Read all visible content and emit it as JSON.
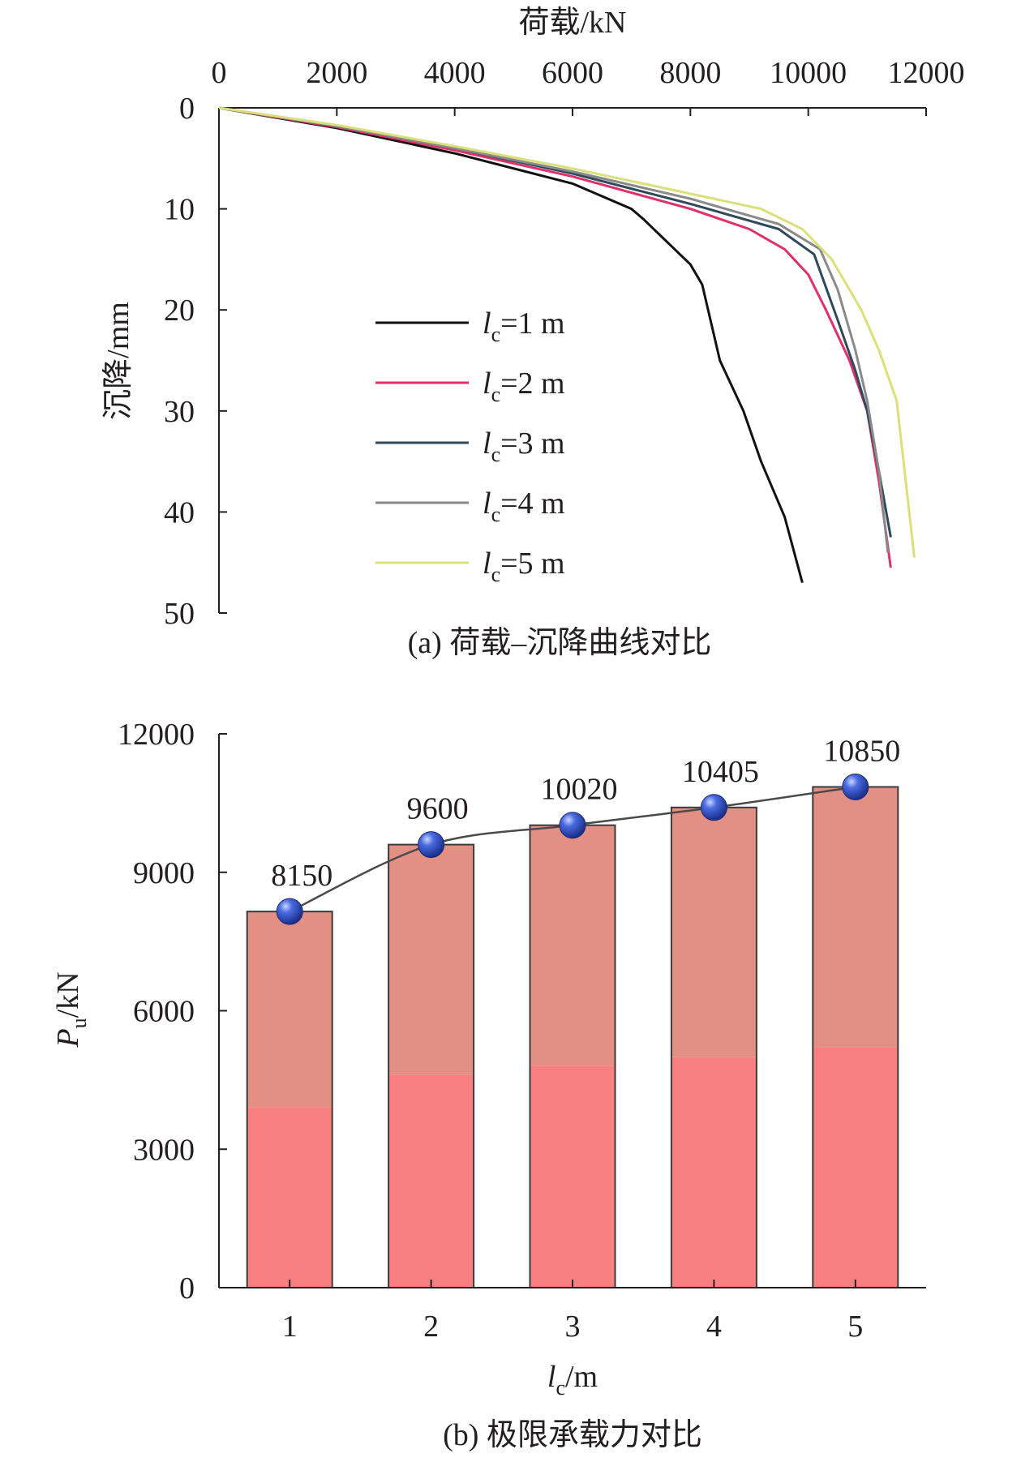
{
  "chart_data": [
    {
      "type": "line",
      "caption": "(a) 荷载–沉降曲线对比",
      "xlabel": "荷载/kN",
      "ylabel": "沉降/mm",
      "x_axis_position": "top",
      "y_axis_inverted": true,
      "xlim": [
        0,
        12000
      ],
      "ylim": [
        0,
        50
      ],
      "x_ticks": [
        "0",
        "2000",
        "4000",
        "6000",
        "8000",
        "10000",
        "12000"
      ],
      "y_ticks": [
        "0",
        "10",
        "20",
        "30",
        "40",
        "50"
      ],
      "grid": false,
      "legend_position": "center-left",
      "series": [
        {
          "name": "lc=1 m",
          "name_main": "l",
          "name_sub": "c",
          "name_rest": "=1 m",
          "color": "#111111",
          "x": [
            0,
            2000,
            4000,
            6000,
            7000,
            7200,
            8000,
            8200,
            8500,
            8900,
            9200,
            9600,
            9900
          ],
          "y": [
            0,
            2.0,
            4.5,
            7.5,
            10.0,
            11.0,
            15.5,
            17.5,
            25.0,
            30.0,
            35.0,
            40.5,
            47.0
          ]
        },
        {
          "name": "lc=2 m",
          "name_main": "l",
          "name_sub": "c",
          "name_rest": "=2 m",
          "color": "#e0306a",
          "x": [
            0,
            2000,
            4000,
            6000,
            8000,
            9000,
            9600,
            10000,
            10300,
            10700,
            11000,
            11200,
            11400
          ],
          "y": [
            0,
            1.9,
            4.2,
            6.8,
            10.0,
            12.0,
            14.0,
            16.5,
            20.0,
            25.0,
            30.0,
            37.0,
            45.5
          ]
        },
        {
          "name": "lc=3 m",
          "name_main": "l",
          "name_sub": "c",
          "name_rest": "=3 m",
          "color": "#2e4a5c",
          "x": [
            0,
            2000,
            4000,
            6000,
            8000,
            9500,
            10100,
            10500,
            10800,
            11000,
            11200,
            11400
          ],
          "y": [
            0,
            1.8,
            4.0,
            6.5,
            9.5,
            12.0,
            14.5,
            21.0,
            26.0,
            30.0,
            36.0,
            42.5
          ]
        },
        {
          "name": "lc=4 m",
          "name_main": "l",
          "name_sub": "c",
          "name_rest": "=4 m",
          "color": "#8a8a8a",
          "x": [
            0,
            2000,
            4000,
            6000,
            8000,
            9500,
            10200,
            10500,
            10800,
            11000,
            11200,
            11350
          ],
          "y": [
            0,
            1.8,
            4.0,
            6.3,
            9.0,
            11.5,
            14.0,
            18.0,
            24.0,
            29.0,
            36.0,
            44.0
          ]
        },
        {
          "name": "lc=5 m",
          "name_main": "l",
          "name_sub": "c",
          "name_rest": "=5 m",
          "color": "#dbe07a",
          "x": [
            0,
            2000,
            4000,
            6000,
            8000,
            9200,
            9900,
            10400,
            10900,
            11200,
            11500,
            11800
          ],
          "y": [
            0,
            1.7,
            3.8,
            6.0,
            8.5,
            10.0,
            12.0,
            15.0,
            20.0,
            24.0,
            29.0,
            44.5
          ]
        }
      ]
    },
    {
      "type": "bar",
      "caption": "(b) 极限承载力对比",
      "xlabel_main": "l",
      "xlabel_sub": "c",
      "xlabel_rest": "/m",
      "ylabel_main": "P",
      "ylabel_sub": "u",
      "ylabel_rest": "/kN",
      "categories": [
        "1",
        "2",
        "3",
        "4",
        "5"
      ],
      "values": [
        8150,
        9600,
        10020,
        10405,
        10850
      ],
      "data_labels": [
        "8150",
        "9600",
        "10020",
        "10405",
        "10850"
      ],
      "ylim": [
        0,
        12000
      ],
      "y_ticks": [
        "0",
        "3000",
        "6000",
        "9000",
        "12000"
      ],
      "grid": false,
      "bar_color_top": "#e38f84",
      "bar_color_bottom": "#f98080",
      "bar_edge_color": "#3b3b3b",
      "line_color": "#4a4a4a",
      "marker_color": "#2a47b8"
    }
  ]
}
